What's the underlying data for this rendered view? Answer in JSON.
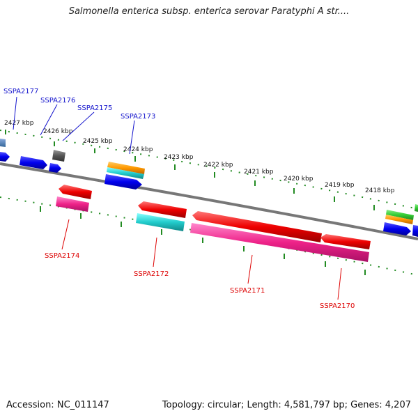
{
  "title": "Salmonella enterica subsp. enterica serovar Paratyphi A str....",
  "accession": {
    "label": "Accession:",
    "value": "NC_011147"
  },
  "summary": "Topology: circular; Length: 4,581,797 bp; Genes: 4,207",
  "ruler": {
    "unit": "kbp",
    "ticks": [
      "2427 kbp",
      "2426 kbp",
      "2425 kbp",
      "2424 kbp",
      "2423 kbp",
      "2422 kbp",
      "2421 kbp",
      "2420 kbp",
      "2419 kbp",
      "2418 kbp"
    ]
  },
  "gene_labels": {
    "top": [
      "SSPA2177",
      "SSPA2176",
      "SSPA2175",
      "SSPA2173"
    ],
    "bottom": [
      "SSPA2174",
      "SSPA2172",
      "SSPA2171",
      "SSPA2170"
    ]
  },
  "colors": {
    "backbone": "#777777",
    "tick": "#228B22",
    "forward_cds": "#0000ee",
    "reverse_cds": "#ee0000",
    "reverse_gene": "#ee2288",
    "cyan_feature": "#22cccc",
    "orange_feature": "#ff9900",
    "green_feature": "#33cc33",
    "gray_feature": "#555555"
  }
}
